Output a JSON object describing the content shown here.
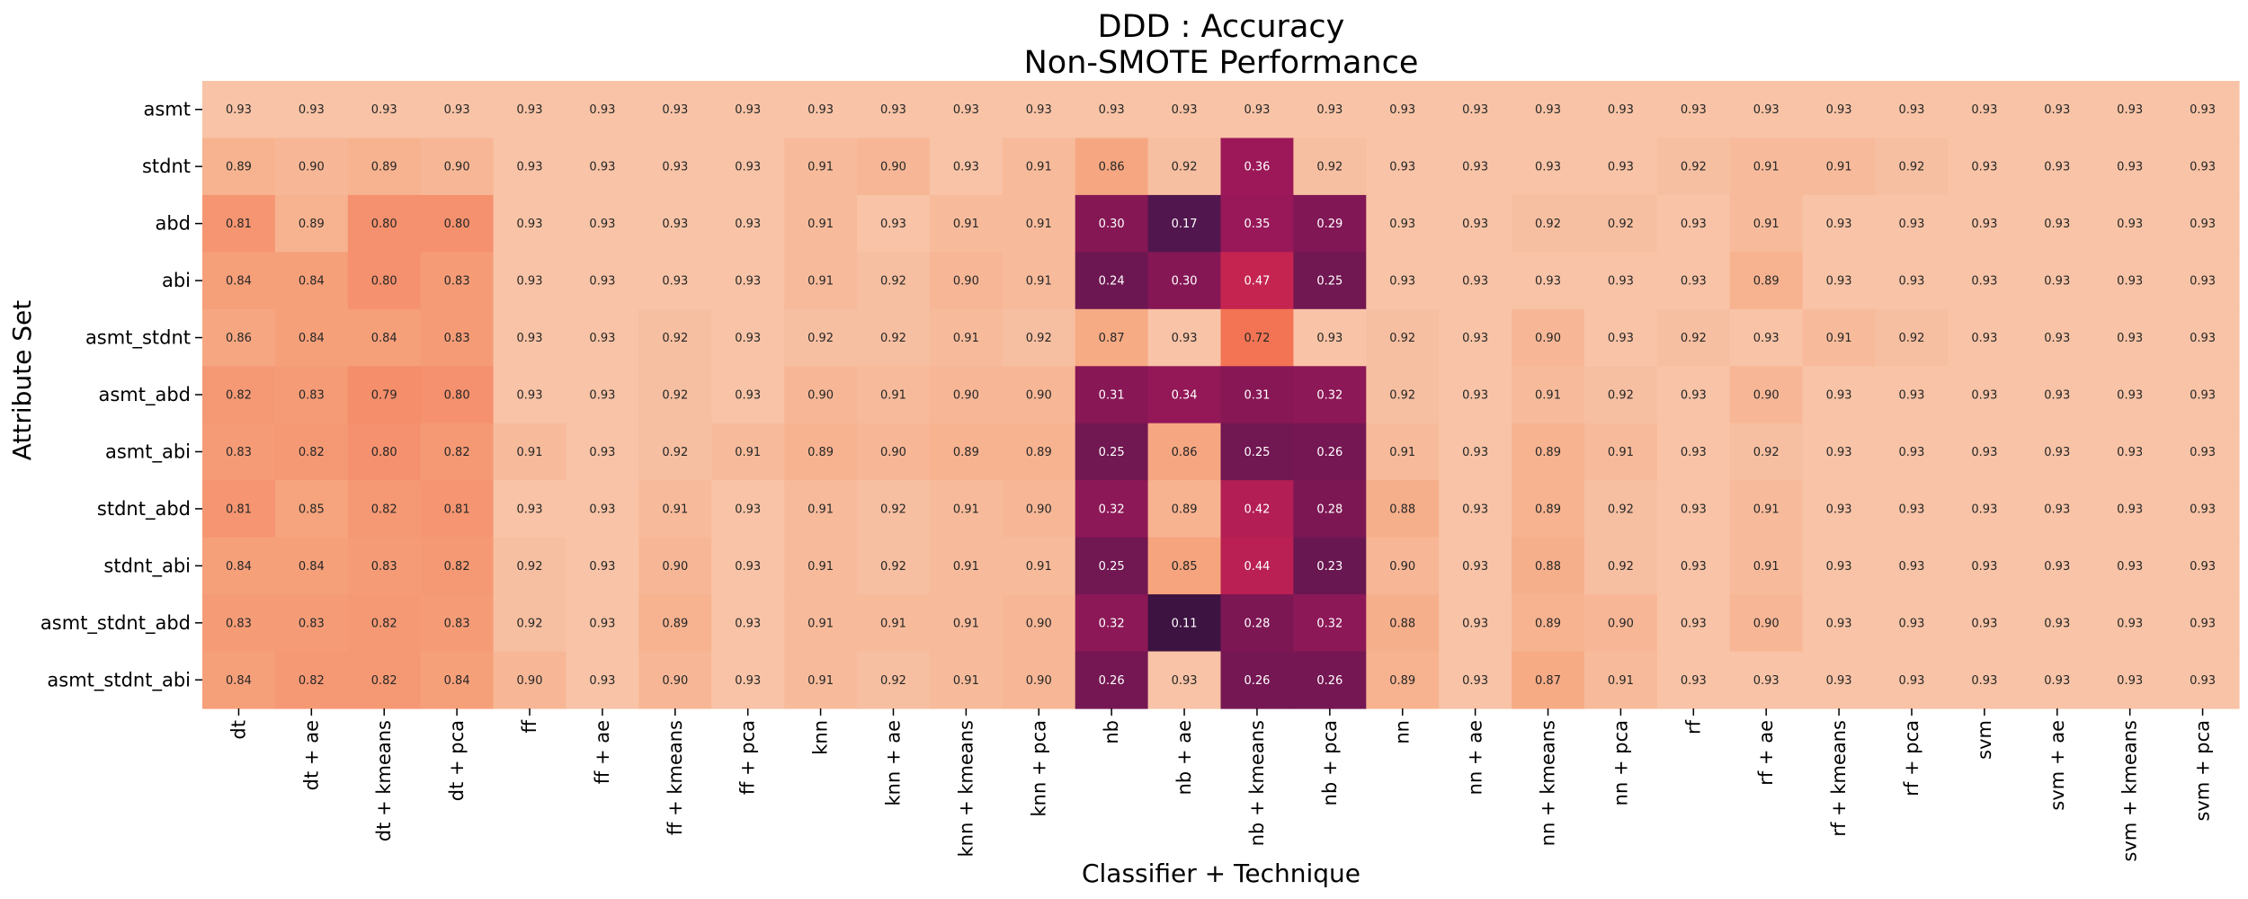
{
  "chart_data": {
    "type": "heatmap",
    "title": "DDD : Accuracy",
    "subtitle": "Non-SMOTE Performance",
    "xlabel": "Classifier + Technique",
    "ylabel": "Attribute Set",
    "x": [
      "dt",
      "dt + ae",
      "dt + kmeans",
      "dt + pca",
      "ff",
      "ff + ae",
      "ff + kmeans",
      "ff + pca",
      "knn",
      "knn + ae",
      "knn + kmeans",
      "knn + pca",
      "nb",
      "nb + ae",
      "nb + kmeans",
      "nb + pca",
      "nn",
      "nn + ae",
      "nn + kmeans",
      "nn + pca",
      "rf",
      "rf + ae",
      "rf + kmeans",
      "rf + pca",
      "svm",
      "svm + ae",
      "svm + kmeans",
      "svm + pca"
    ],
    "y": [
      "asmt",
      "stdnt",
      "abd",
      "abi",
      "asmt_stdnt",
      "asmt_abd",
      "asmt_abi",
      "stdnt_abd",
      "stdnt_abi",
      "asmt_stdnt_abd",
      "asmt_stdnt_abi"
    ],
    "values": [
      [
        0.93,
        0.93,
        0.93,
        0.93,
        0.93,
        0.93,
        0.93,
        0.93,
        0.93,
        0.93,
        0.93,
        0.93,
        0.93,
        0.93,
        0.93,
        0.93,
        0.93,
        0.93,
        0.93,
        0.93,
        0.93,
        0.93,
        0.93,
        0.93,
        0.93,
        0.93,
        0.93,
        0.93
      ],
      [
        0.89,
        0.9,
        0.89,
        0.9,
        0.93,
        0.93,
        0.93,
        0.93,
        0.91,
        0.9,
        0.93,
        0.91,
        0.86,
        0.92,
        0.36,
        0.92,
        0.93,
        0.93,
        0.93,
        0.93,
        0.92,
        0.91,
        0.91,
        0.92,
        0.93,
        0.93,
        0.93,
        0.93
      ],
      [
        0.81,
        0.89,
        0.8,
        0.8,
        0.93,
        0.93,
        0.93,
        0.93,
        0.91,
        0.93,
        0.91,
        0.91,
        0.3,
        0.17,
        0.35,
        0.29,
        0.93,
        0.93,
        0.92,
        0.92,
        0.93,
        0.91,
        0.93,
        0.93,
        0.93,
        0.93,
        0.93,
        0.93
      ],
      [
        0.84,
        0.84,
        0.8,
        0.83,
        0.93,
        0.93,
        0.93,
        0.93,
        0.91,
        0.92,
        0.9,
        0.91,
        0.24,
        0.3,
        0.47,
        0.25,
        0.93,
        0.93,
        0.93,
        0.93,
        0.93,
        0.89,
        0.93,
        0.93,
        0.93,
        0.93,
        0.93,
        0.93
      ],
      [
        0.86,
        0.84,
        0.84,
        0.83,
        0.93,
        0.93,
        0.92,
        0.93,
        0.92,
        0.92,
        0.91,
        0.92,
        0.87,
        0.93,
        0.72,
        0.93,
        0.92,
        0.93,
        0.9,
        0.93,
        0.92,
        0.93,
        0.91,
        0.92,
        0.93,
        0.93,
        0.93,
        0.93
      ],
      [
        0.82,
        0.83,
        0.79,
        0.8,
        0.93,
        0.93,
        0.92,
        0.93,
        0.9,
        0.91,
        0.9,
        0.9,
        0.31,
        0.34,
        0.31,
        0.32,
        0.92,
        0.93,
        0.91,
        0.92,
        0.93,
        0.9,
        0.93,
        0.93,
        0.93,
        0.93,
        0.93,
        0.93
      ],
      [
        0.83,
        0.82,
        0.8,
        0.82,
        0.91,
        0.93,
        0.92,
        0.91,
        0.89,
        0.9,
        0.89,
        0.89,
        0.25,
        0.86,
        0.25,
        0.26,
        0.91,
        0.93,
        0.89,
        0.91,
        0.93,
        0.92,
        0.93,
        0.93,
        0.93,
        0.93,
        0.93,
        0.93
      ],
      [
        0.81,
        0.85,
        0.82,
        0.81,
        0.93,
        0.93,
        0.91,
        0.93,
        0.91,
        0.92,
        0.91,
        0.9,
        0.32,
        0.89,
        0.42,
        0.28,
        0.88,
        0.93,
        0.89,
        0.92,
        0.93,
        0.91,
        0.93,
        0.93,
        0.93,
        0.93,
        0.93,
        0.93
      ],
      [
        0.84,
        0.84,
        0.83,
        0.82,
        0.92,
        0.93,
        0.9,
        0.93,
        0.91,
        0.92,
        0.91,
        0.91,
        0.25,
        0.85,
        0.44,
        0.23,
        0.9,
        0.93,
        0.88,
        0.92,
        0.93,
        0.91,
        0.93,
        0.93,
        0.93,
        0.93,
        0.93,
        0.93
      ],
      [
        0.83,
        0.83,
        0.82,
        0.83,
        0.92,
        0.93,
        0.89,
        0.93,
        0.91,
        0.91,
        0.91,
        0.9,
        0.32,
        0.11,
        0.28,
        0.32,
        0.88,
        0.93,
        0.89,
        0.9,
        0.93,
        0.9,
        0.93,
        0.93,
        0.93,
        0.93,
        0.93,
        0.93
      ],
      [
        0.84,
        0.82,
        0.82,
        0.84,
        0.9,
        0.93,
        0.9,
        0.93,
        0.91,
        0.92,
        0.91,
        0.9,
        0.26,
        0.93,
        0.26,
        0.26,
        0.89,
        0.93,
        0.87,
        0.91,
        0.93,
        0.93,
        0.93,
        0.93,
        0.93,
        0.93,
        0.93,
        0.93
      ]
    ],
    "value_format": "0.00",
    "colormap": "rocket",
    "vmin": 0.11,
    "vmax": 0.93,
    "grid": false,
    "colorbar": false
  }
}
